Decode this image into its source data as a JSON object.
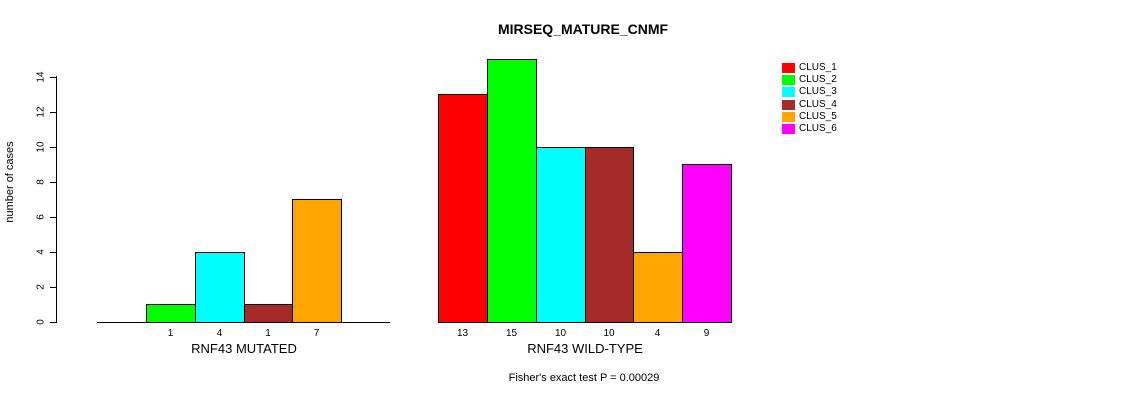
{
  "title": "MIRSEQ_MATURE_CNMF",
  "ylabel": "number of cases",
  "footnote": "Fisher's exact test P = 0.00029",
  "chart_data": {
    "type": "bar",
    "title": "MIRSEQ_MATURE_CNMF",
    "ylabel": "number of cases",
    "xlabel": "",
    "ylim": [
      0,
      15
    ],
    "yticks": [
      0,
      2,
      4,
      6,
      8,
      10,
      12,
      14
    ],
    "grid": false,
    "legend_position": "right",
    "clusters": [
      {
        "name": "CLUS_1",
        "color": "#FF0000"
      },
      {
        "name": "CLUS_2",
        "color": "#00FF00"
      },
      {
        "name": "CLUS_3",
        "color": "#00FFFF"
      },
      {
        "name": "CLUS_4",
        "color": "#A52A2A"
      },
      {
        "name": "CLUS_5",
        "color": "#FFA500"
      },
      {
        "name": "CLUS_6",
        "color": "#FF00FF"
      }
    ],
    "groups": [
      {
        "label": "RNF43 MUTATED",
        "values": [
          0,
          1,
          4,
          1,
          7,
          0
        ],
        "bar_labels": [
          "",
          "1",
          "4",
          "1",
          "7",
          ""
        ]
      },
      {
        "label": "RNF43 WILD-TYPE",
        "values": [
          13,
          15,
          10,
          10,
          4,
          9
        ],
        "bar_labels": [
          "13",
          "15",
          "10",
          "10",
          "4",
          "9"
        ]
      }
    ],
    "annotation": "Fisher's exact test P = 0.00029"
  }
}
